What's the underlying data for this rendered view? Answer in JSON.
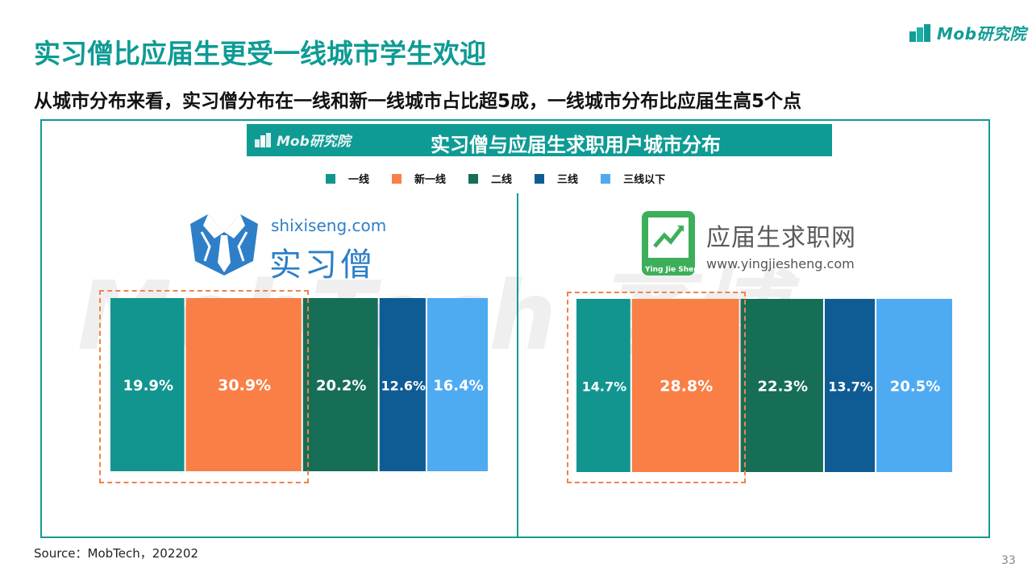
{
  "brand": {
    "name": "Mob研究院"
  },
  "title": "实习僧比应届生更受一线城市学生欢迎",
  "subtitle": "从城市分布来看，实习僧分布在一线和新一线城市占比超5成，一线城市分布比应届生高5个点",
  "chart_header": {
    "logo": "Mob研究院",
    "title": "实习僧与应届生求职用户城市分布"
  },
  "watermark": "MobTech 袤博",
  "logos": {
    "shixiseng": {
      "url": "shixiseng.com",
      "name": "实习僧"
    },
    "yingjiesheng": {
      "name": "应届生求职网",
      "url": "www.yingjiesheng.com",
      "badge": "Ying Jie Sheng"
    }
  },
  "chart_data": {
    "type": "bar",
    "stacked": "100% horizontal",
    "categories": [
      "一线",
      "新一线",
      "二线",
      "三线",
      "三线以下"
    ],
    "legend": [
      "一线",
      "新一线",
      "二线",
      "三线",
      "三线以下"
    ],
    "colors": [
      "#12958F",
      "#F97F46",
      "#176E57",
      "#0F5C95",
      "#4EABF2"
    ],
    "series": [
      {
        "values": [
          19.9,
          30.9,
          20.2,
          12.6,
          16.4
        ],
        "labels": [
          "19.9%",
          "30.9%",
          "20.2%",
          "12.6%",
          "16.4%"
        ]
      },
      {
        "values": [
          14.7,
          28.8,
          22.3,
          13.7,
          20.5
        ],
        "labels": [
          "14.7%",
          "28.8%",
          "22.3%",
          "13.7%",
          "20.5%"
        ]
      }
    ],
    "legend_position": "top"
  },
  "source": "Source：MobTech，202202",
  "page_number": "33"
}
